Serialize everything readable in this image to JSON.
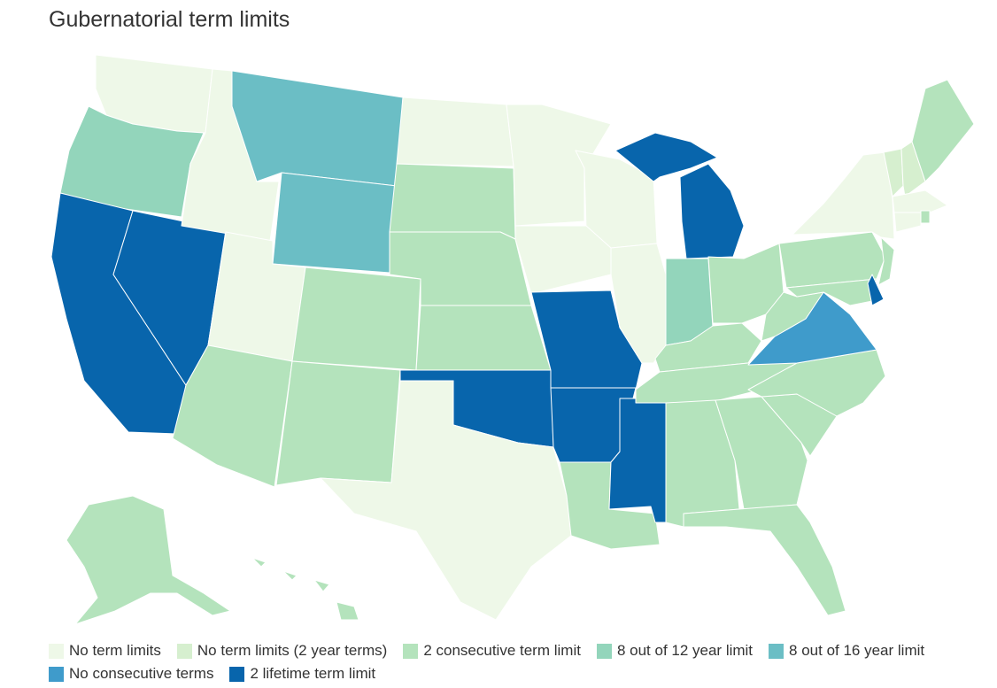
{
  "title": "Gubernatorial term limits",
  "legend": [
    {
      "label": "No term limits",
      "color": "#eef8e8"
    },
    {
      "label": "No term limits (2 year terms)",
      "color": "#d6efcf"
    },
    {
      "label": "2 consecutive term limit",
      "color": "#b4e3bc"
    },
    {
      "label": "8 out of 12 year limit",
      "color": "#93d5bb"
    },
    {
      "label": "8 out of 16 year limit",
      "color": "#6bbec5"
    },
    {
      "label": "No consecutive terms",
      "color": "#3f9bcb"
    },
    {
      "label": "2 lifetime term limit",
      "color": "#0865ac"
    }
  ],
  "map_data": {
    "type": "choropleth",
    "region": "United States",
    "states": {
      "WA": "No term limits",
      "ID": "No term limits",
      "UT": "No term limits",
      "TX": "No term limits",
      "ND": "No term limits",
      "MN": "No term limits",
      "WI": "No term limits",
      "IA": "No term limits",
      "IL": "No term limits",
      "NY": "No term limits",
      "MA": "No term limits",
      "CT": "No term limits",
      "VT": "No term limits (2 year terms)",
      "NH": "No term limits (2 year terms)",
      "OR": "8 out of 12 year limit",
      "IN": "8 out of 12 year limit",
      "MT": "8 out of 16 year limit",
      "WY": "8 out of 16 year limit",
      "VA": "No consecutive terms",
      "CA": "2 lifetime term limit",
      "NV": "2 lifetime term limit",
      "MI": "2 lifetime term limit",
      "MO": "2 lifetime term limit",
      "OK": "2 lifetime term limit",
      "AR": "2 lifetime term limit",
      "MS": "2 lifetime term limit",
      "DE": "2 lifetime term limit",
      "AZ": "2 consecutive term limit",
      "NM": "2 consecutive term limit",
      "CO": "2 consecutive term limit",
      "NE": "2 consecutive term limit",
      "KS": "2 consecutive term limit",
      "SD": "2 consecutive term limit",
      "LA": "2 consecutive term limit",
      "AL": "2 consecutive term limit",
      "GA": "2 consecutive term limit",
      "FL": "2 consecutive term limit",
      "SC": "2 consecutive term limit",
      "NC": "2 consecutive term limit",
      "TN": "2 consecutive term limit",
      "KY": "2 consecutive term limit",
      "OH": "2 consecutive term limit",
      "WV": "2 consecutive term limit",
      "PA": "2 consecutive term limit",
      "NJ": "2 consecutive term limit",
      "MD": "2 consecutive term limit",
      "RI": "2 consecutive term limit",
      "ME": "2 consecutive term limit",
      "AK": "2 consecutive term limit",
      "HI": "2 consecutive term limit"
    }
  }
}
